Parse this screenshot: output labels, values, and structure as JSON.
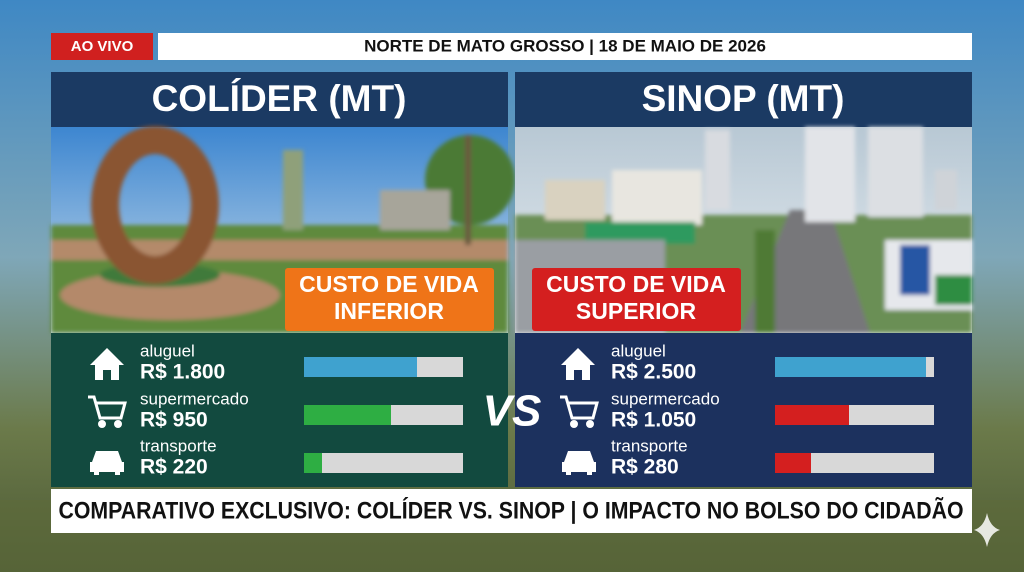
{
  "live_badge": "AO VIVO",
  "header": "NORTE DE MATO GROSSO | 18 DE MAIO DE 2026",
  "cities": [
    {
      "name": "COLÍDER (MT)",
      "badge": [
        "CUSTO DE VIDA",
        "INFERIOR"
      ],
      "items": [
        {
          "label": "aluguel",
          "price": "R$ 1.800"
        },
        {
          "label": "supermercado",
          "price": "R$ 950"
        },
        {
          "label": "transporte",
          "price": "R$ 220"
        }
      ]
    },
    {
      "name": "SINOP (MT)",
      "badge": [
        "CUSTO DE VIDA",
        "SUPERIOR"
      ],
      "items": [
        {
          "label": "aluguel",
          "price": "R$ 2.500"
        },
        {
          "label": "supermercado",
          "price": "R$ 1.050"
        },
        {
          "label": "transporte",
          "price": "R$ 280"
        }
      ]
    }
  ],
  "vs": "VS",
  "footer": "COMPARATIVO EXCLUSIVO: COLÍDER VS. SINOP | O IMPACTO NO BOLSO DO CIDADÃO"
}
